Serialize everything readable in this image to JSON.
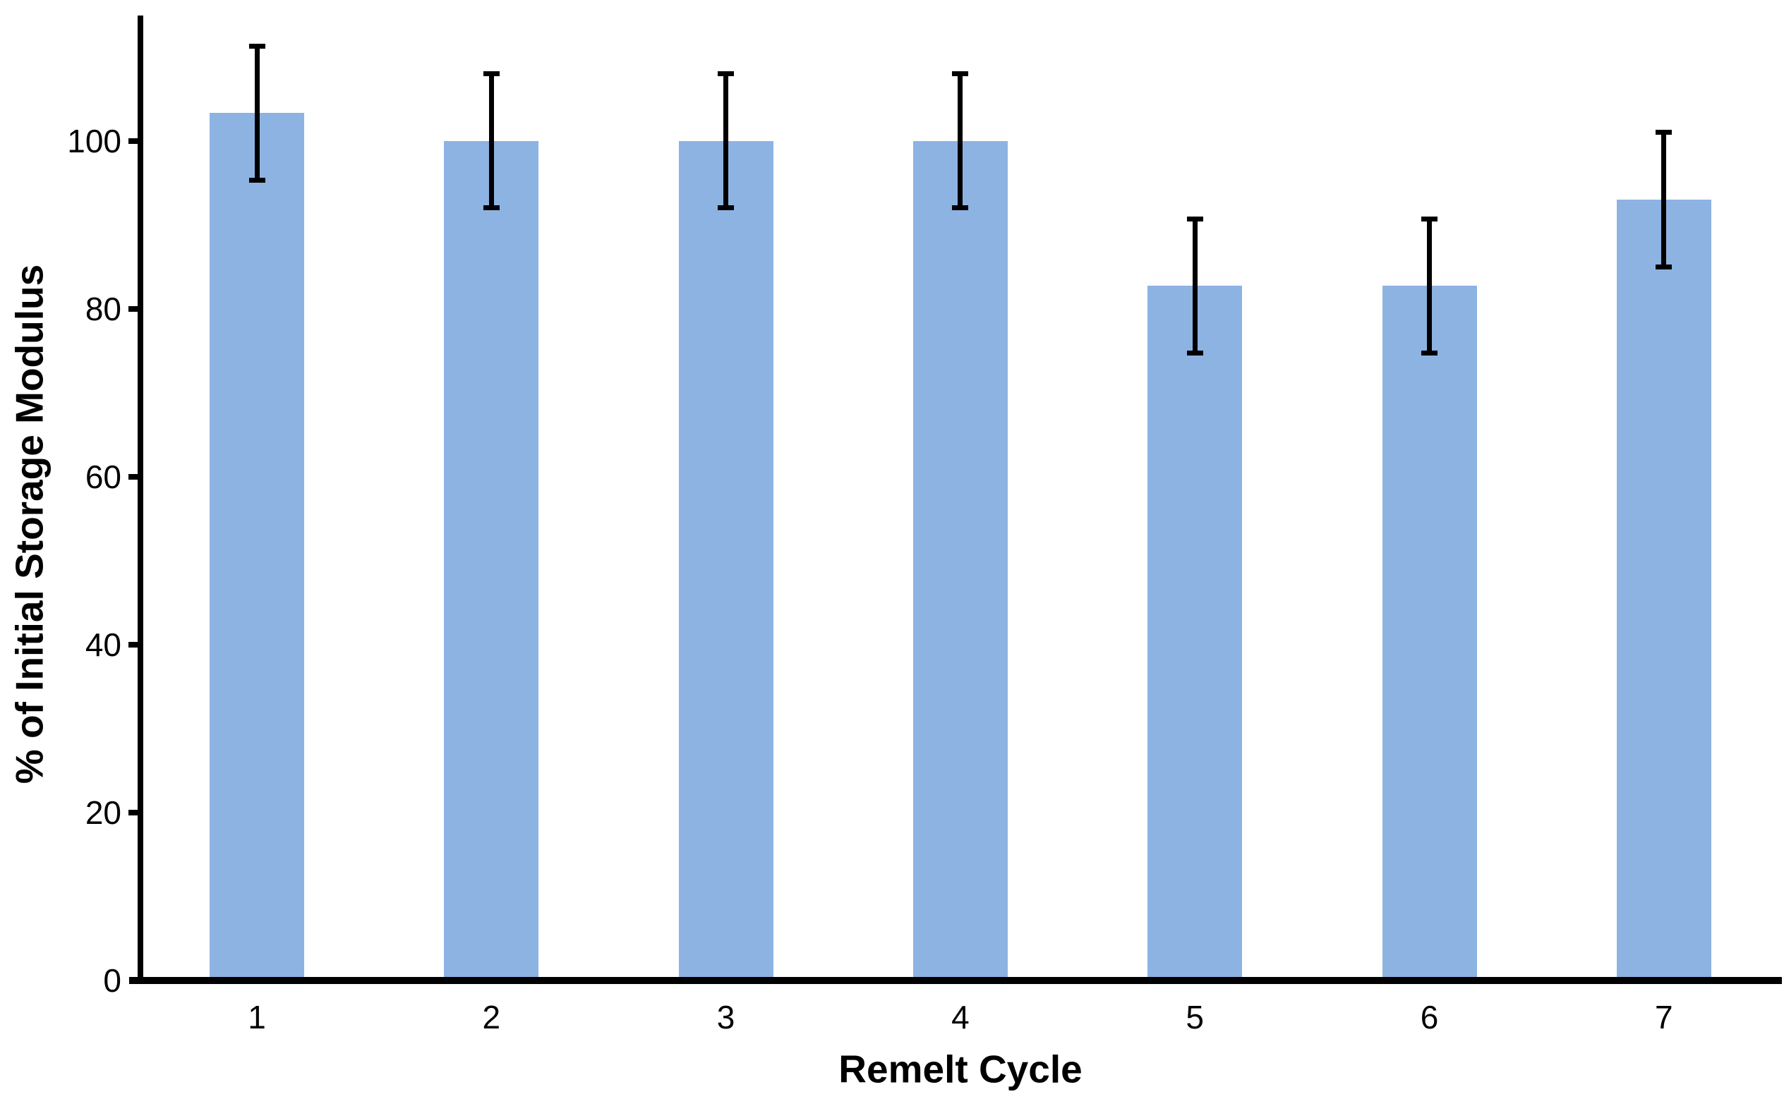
{
  "figure": {
    "background": "#ffffff",
    "text_color": "#000000"
  },
  "chart_data": {
    "type": "bar",
    "title": "",
    "xlabel": "Remelt Cycle",
    "ylabel": "% of Initial Storage Modulus",
    "categories": [
      "1",
      "2",
      "3",
      "4",
      "5",
      "6",
      "7"
    ],
    "values": [
      103.3,
      100,
      100,
      100,
      82.7,
      82.7,
      93
    ],
    "error_bars": {
      "type": "symmetric",
      "values": [
        8,
        8,
        8,
        8,
        8,
        8,
        8
      ]
    },
    "yticks": [
      0,
      20,
      40,
      60,
      80,
      100
    ],
    "ylim": [
      0,
      115
    ],
    "grid": false,
    "legend_position": "none",
    "bar_color": "#8DB3E2",
    "error_bar_color": "#000000",
    "axis_color": "#000000"
  }
}
